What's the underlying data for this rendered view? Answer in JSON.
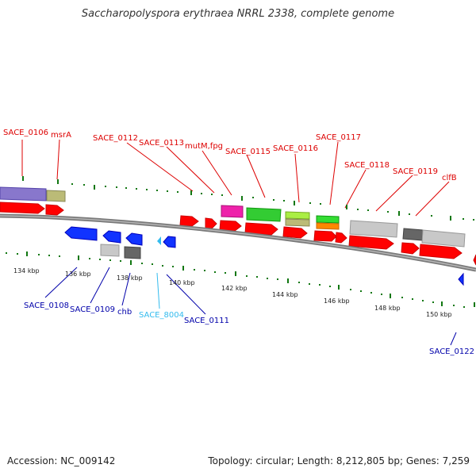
{
  "title": "Saccharopolyspora erythraea NRRL 2338, complete genome",
  "footer": {
    "accession": "Accession: NC_009142",
    "topology": "Topology: circular; Length: 8,212,805 bp; Genes: 7,259"
  },
  "colors": {
    "label_top": "#dd0000",
    "label_bottom": "#0000aa",
    "label_cyan": "#33bbee",
    "backbone": "#808080",
    "tick_green": "#117711"
  },
  "scale_labels": [
    "134 kbp",
    "136 kbp",
    "138 kbp",
    "140 kbp",
    "142 kbp",
    "144 kbp",
    "146 kbp",
    "148 kbp",
    "150 kbp"
  ],
  "top_labels": [
    "SACE_0106",
    "msrA",
    "SACE_0112",
    "SACE_0113",
    "mutM,fpg",
    "SACE_0115",
    "SACE_0116",
    "SACE_0117",
    "SACE_0118",
    "SACE_0119",
    "clfB"
  ],
  "bottom_labels": [
    "SACE_0108",
    "SACE_0109",
    "chb",
    "SACE_8004",
    "SACE_0111",
    "SACE_0122"
  ]
}
